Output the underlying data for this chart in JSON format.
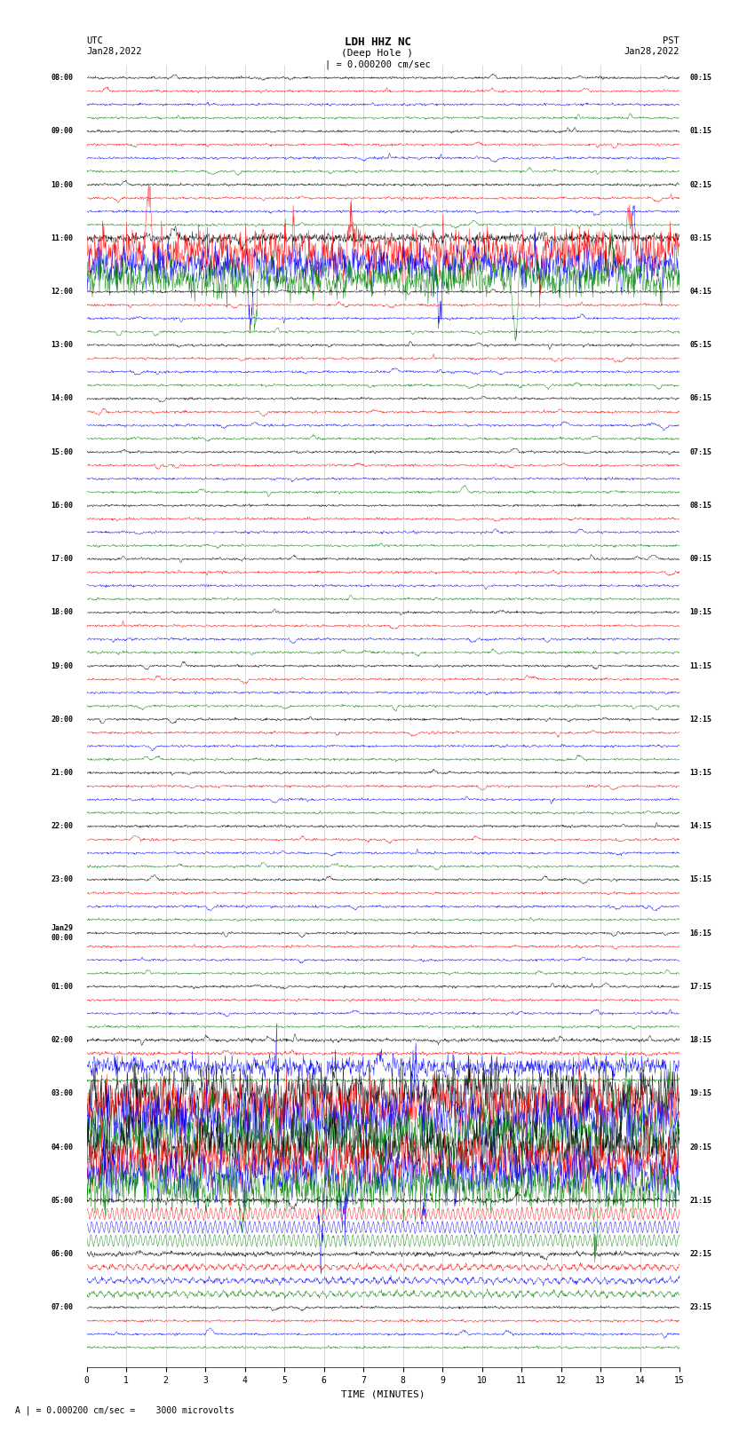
{
  "title_line1": "LDH HHZ NC",
  "title_line2": "(Deep Hole )",
  "title_scale": "| = 0.000200 cm/sec",
  "utc_label": "UTC",
  "utc_date": "Jan28,2022",
  "pst_label": "PST",
  "pst_date": "Jan28,2022",
  "xlabel": "TIME (MINUTES)",
  "bottom_note": "A | = 0.000200 cm/sec =    3000 microvolts",
  "background_color": "#ffffff",
  "trace_colors": [
    "black",
    "red",
    "blue",
    "green"
  ],
  "left_times": [
    "08:00",
    "09:00",
    "10:00",
    "11:00",
    "12:00",
    "13:00",
    "14:00",
    "15:00",
    "16:00",
    "17:00",
    "18:00",
    "19:00",
    "20:00",
    "21:00",
    "22:00",
    "23:00",
    "Jan29\n00:00",
    "01:00",
    "02:00",
    "03:00",
    "04:00",
    "05:00",
    "06:00",
    "07:00"
  ],
  "right_times": [
    "00:15",
    "01:15",
    "02:15",
    "03:15",
    "04:15",
    "05:15",
    "06:15",
    "07:15",
    "08:15",
    "09:15",
    "10:15",
    "11:15",
    "12:15",
    "13:15",
    "14:15",
    "15:15",
    "16:15",
    "17:15",
    "18:15",
    "19:15",
    "20:15",
    "21:15",
    "22:15",
    "23:15"
  ],
  "n_hours": 24,
  "n_traces_per_hour": 4,
  "n_cols": 1500,
  "xmin": 0,
  "xmax": 15,
  "xticks": [
    0,
    1,
    2,
    3,
    4,
    5,
    6,
    7,
    8,
    9,
    10,
    11,
    12,
    13,
    14,
    15
  ],
  "noise_base": 0.06,
  "noise_medium": 0.25,
  "noise_large": 0.8,
  "noise_xlarge": 1.4,
  "sinusoidal_amp": 0.38,
  "sinusoidal_freq": 8.0
}
